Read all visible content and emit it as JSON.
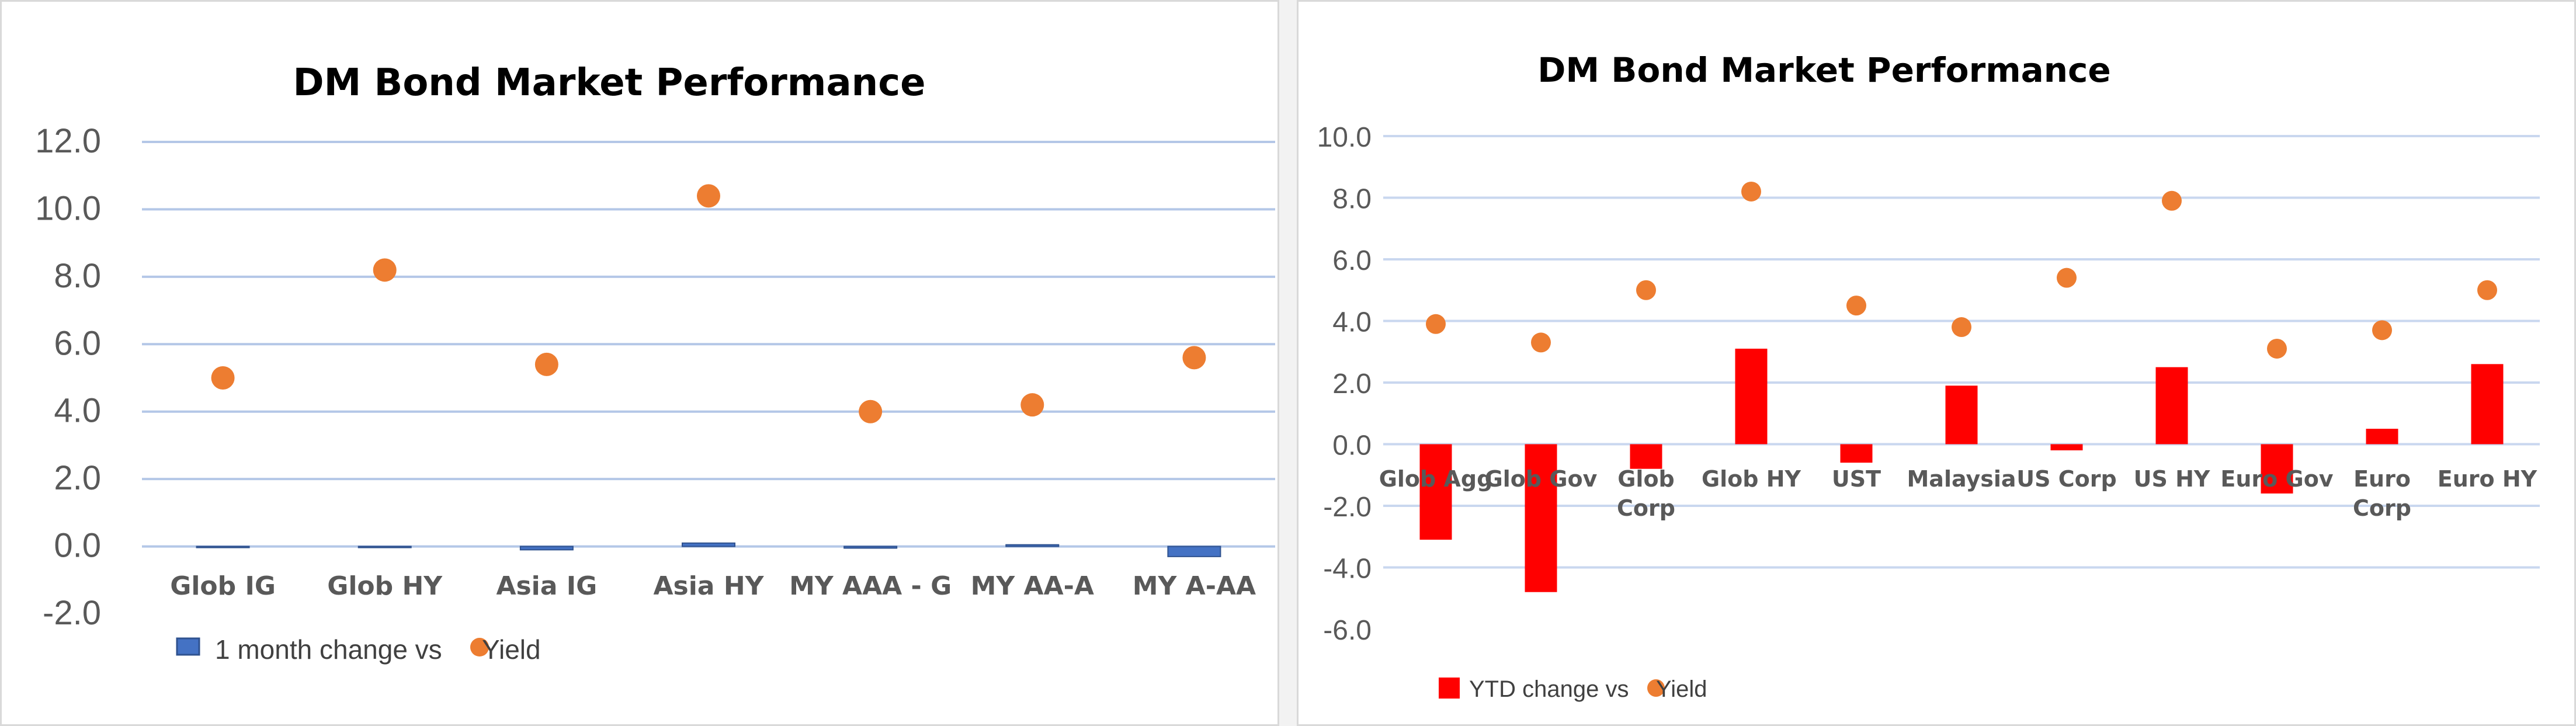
{
  "chart_data": [
    {
      "type": "bar",
      "title": "DM Bond Market Performance",
      "categories": [
        "Glob IG",
        "Glob HY",
        "Asia IG",
        "Asia HY",
        "MY AAA - G",
        "MY AA-A",
        "MY A-AA"
      ],
      "y_ticks": [
        "12.0",
        "10.0",
        "8.0",
        "6.0",
        "4.0",
        "2.0",
        "0.0",
        "-2.0"
      ],
      "ylim": [
        -2,
        12
      ],
      "grid": true,
      "legend_position": "bottom-left",
      "series": [
        {
          "name": "1 month change vs",
          "kind": "bar",
          "color": "#4472c4",
          "values": [
            0.0,
            0.0,
            -0.1,
            0.1,
            -0.05,
            0.05,
            -0.3
          ]
        },
        {
          "name": "Yield",
          "kind": "scatter",
          "color": "#ed7d31",
          "values": [
            5.0,
            8.2,
            5.4,
            10.4,
            4.0,
            4.2,
            5.6
          ]
        }
      ]
    },
    {
      "type": "bar",
      "title": "DM Bond Market Performance",
      "categories": [
        "Glob Agg",
        "Glob Gov",
        "Glob Corp",
        "Glob HY",
        "UST",
        "Malaysia",
        "US Corp",
        "US HY",
        "Euro Gov",
        "Euro Corp",
        "Euro HY"
      ],
      "y_ticks": [
        "10.0",
        "8.0",
        "6.0",
        "4.0",
        "2.0",
        "0.0",
        "-2.0",
        "-4.0",
        "-6.0"
      ],
      "ylim": [
        -6,
        10
      ],
      "grid": true,
      "legend_position": "bottom-left",
      "series": [
        {
          "name": "YTD change vs",
          "kind": "bar",
          "color": "#ff0000",
          "values": [
            -3.1,
            -4.8,
            -0.8,
            3.1,
            -0.6,
            1.9,
            -0.2,
            2.5,
            -1.6,
            0.5,
            2.6
          ]
        },
        {
          "name": "Yield",
          "kind": "scatter",
          "color": "#ed7d31",
          "values": [
            3.9,
            3.3,
            5.0,
            8.2,
            4.5,
            3.8,
            5.4,
            7.9,
            3.1,
            3.7,
            5.0
          ]
        }
      ]
    }
  ]
}
